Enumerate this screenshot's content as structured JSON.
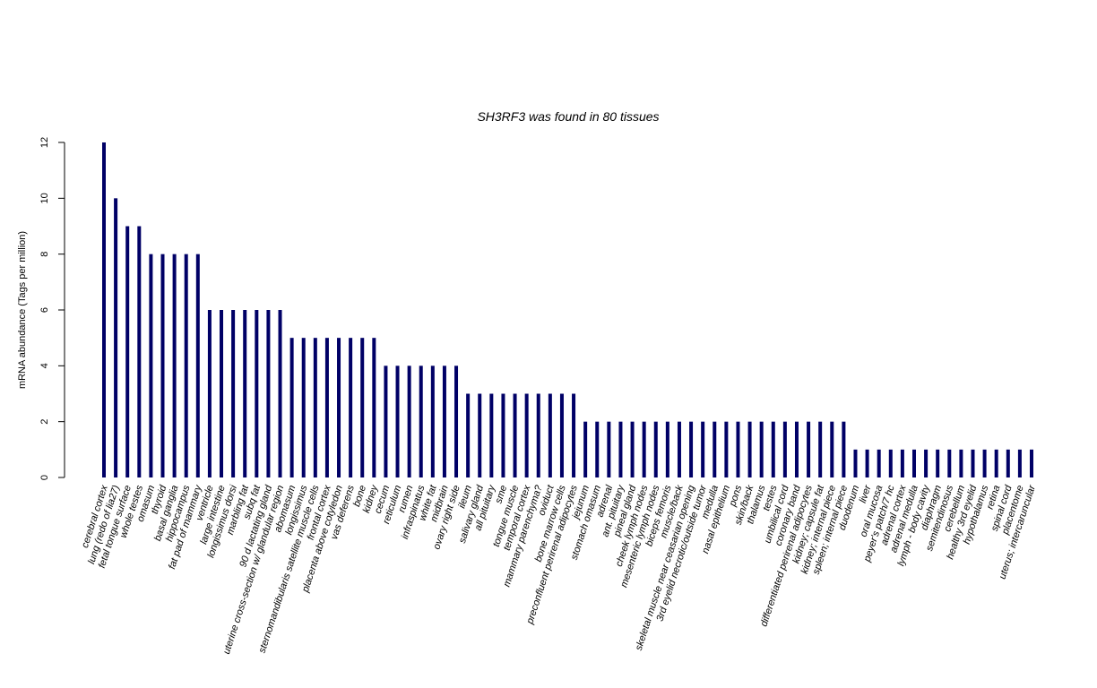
{
  "chart_data": {
    "type": "bar",
    "title": "SH3RF3  was found in  80  tissues",
    "xlabel": "",
    "ylabel": "mRNA abundance (Tags per million)",
    "ylim": [
      0,
      12
    ],
    "yticks": [
      0,
      2,
      4,
      6,
      8,
      10,
      12
    ],
    "grid": false,
    "bar_color": "#000066",
    "categories": [
      "cerebral cortex",
      "lung (redo of lia27)",
      "fetal tongue surface",
      "whole testes",
      "omasum",
      "thyroid",
      "basal ganglia",
      "hippocampus",
      "fat pad of mammary",
      "ventricle",
      "large intestine",
      "longissimus dorsi",
      "marbling fat",
      "subq fat",
      "90 d lactating gland",
      "uterine cross-section w/ glandular region",
      "abomasum",
      "longissimus",
      "sternomandibularis satellite muscle cells",
      "frontal cortex",
      "placenta above cotyledon",
      "vas deferens",
      "bone",
      "kidney",
      "cecum",
      "reticulum",
      "rumen",
      "infraspinatus",
      "white fat",
      "midbrain",
      "ovary right side",
      "ileum",
      "salivary gland",
      "all pituitary",
      "sme",
      "tongue muscle",
      "temporal cortex",
      "mammary parenchyma?",
      "oviduct",
      "bone marrow cells",
      "preconfluent perirenal adipocytes",
      "jejunum",
      "stomach omasum",
      "adrenal",
      "ant. pituitary",
      "pineal gland",
      "cheek lymph nodes",
      "mesenteric lymph nodes",
      "biceps femoris",
      "muscle/back",
      "skeletal muscle near ceasarian opening",
      "3rd eyelid necrotic/outside tumor",
      "medulla",
      "nasal epithelium",
      "pons",
      "skin/back",
      "thalamus",
      "testes",
      "umbilical cord",
      "coronary band",
      "differentiated perirenal adipocytes",
      "kidney; capsule fat",
      "kidney; internal piece",
      "spleen; internal piece",
      "duodenum",
      "liver",
      "oral mucosa",
      "peyer's patch/7 hc",
      "adrenal cortex",
      "adrenal medulla",
      "lymph - body cavity",
      "diaphragm",
      "semitendinosus",
      "cerebellum",
      "healthy 3rd eyelid",
      "hypothalamus",
      "retina",
      "spinal cord",
      "placentome",
      "uterus; intercaruncular"
    ],
    "values": [
      12,
      10,
      9,
      9,
      8,
      8,
      8,
      8,
      8,
      6,
      6,
      6,
      6,
      6,
      6,
      6,
      5,
      5,
      5,
      5,
      5,
      5,
      5,
      5,
      4,
      4,
      4,
      4,
      4,
      4,
      4,
      3,
      3,
      3,
      3,
      3,
      3,
      3,
      3,
      3,
      3,
      2,
      2,
      2,
      2,
      2,
      2,
      2,
      2,
      2,
      2,
      2,
      2,
      2,
      2,
      2,
      2,
      2,
      2,
      2,
      2,
      2,
      2,
      2,
      1,
      1,
      1,
      1,
      1,
      1,
      1,
      1,
      1,
      1,
      1,
      1,
      1,
      1,
      1,
      1
    ]
  }
}
